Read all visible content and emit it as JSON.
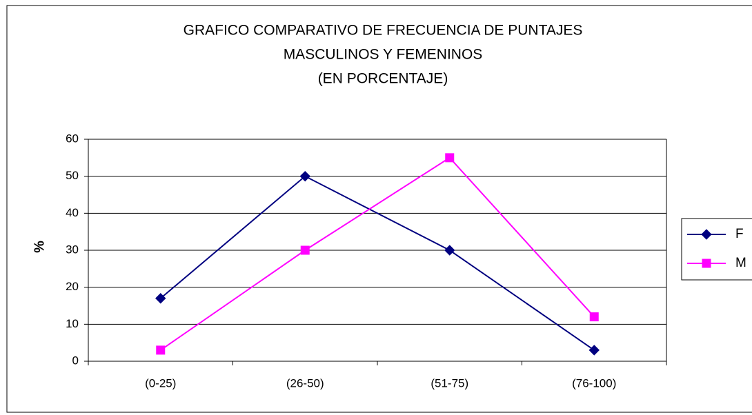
{
  "chart_data": {
    "type": "line",
    "title": [
      "GRAFICO COMPARATIVO DE FRECUENCIA DE PUNTAJES",
      "MASCULINOS Y FEMENINOS",
      "(EN PORCENTAJE)"
    ],
    "y_label": "%",
    "categories": [
      "(0-25)",
      "(26-50)",
      "(51-75)",
      "(76-100)"
    ],
    "series": [
      {
        "name": "F",
        "color": "#000080",
        "marker": "diamond",
        "values": [
          17,
          50,
          30,
          3
        ]
      },
      {
        "name": "M",
        "color": "#ff00ff",
        "marker": "square",
        "values": [
          3,
          30,
          55,
          12
        ]
      }
    ],
    "ylim": [
      0,
      60
    ],
    "yticks": [
      0,
      10,
      20,
      30,
      40,
      50,
      60
    ],
    "grid": true,
    "legend": "right"
  }
}
